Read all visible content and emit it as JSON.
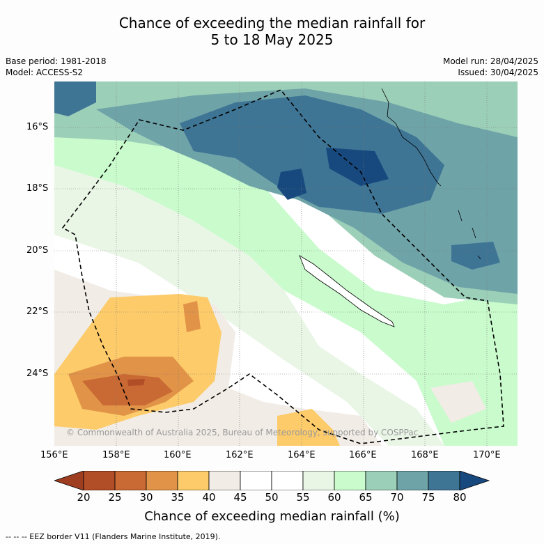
{
  "title": {
    "line1": "Chance of exceeding the median rainfall for",
    "line2": "5 to 18 May 2025"
  },
  "meta": {
    "base_period": "Base period: 1981-2018",
    "model": "Model: ACCESS-S2",
    "model_run": "Model run: 28/04/2025",
    "issued": "Issued: 30/04/2025"
  },
  "lat_ticks": [
    "16°S",
    "18°S",
    "20°S",
    "22°S",
    "24°S"
  ],
  "lon_ticks": [
    "156°E",
    "158°E",
    "160°E",
    "162°E",
    "164°E",
    "166°E",
    "168°E",
    "170°E"
  ],
  "colorbar": {
    "labels": [
      "20",
      "25",
      "30",
      "35",
      "40",
      "45",
      "50",
      "55",
      "60",
      "65",
      "70",
      "75",
      "80"
    ],
    "colors": [
      "#9e3d1f",
      "#b24e27",
      "#c96933",
      "#e19448",
      "#fdcb69",
      "#f1ece6",
      "#ffffff",
      "#ffffff",
      "#e9f6e6",
      "#c9fbcc",
      "#9ccfb8",
      "#6ea3a8",
      "#3e7494",
      "#17497e"
    ],
    "title": "Chance of exceeding median rainfall (%)"
  },
  "copyright": "© Commonwealth of Australia 2025, Bureau of Meteorology, supported by COSPPac",
  "footer": "-- -- -- EEZ border V11 (Flanders Marine Institute, 2019)."
}
